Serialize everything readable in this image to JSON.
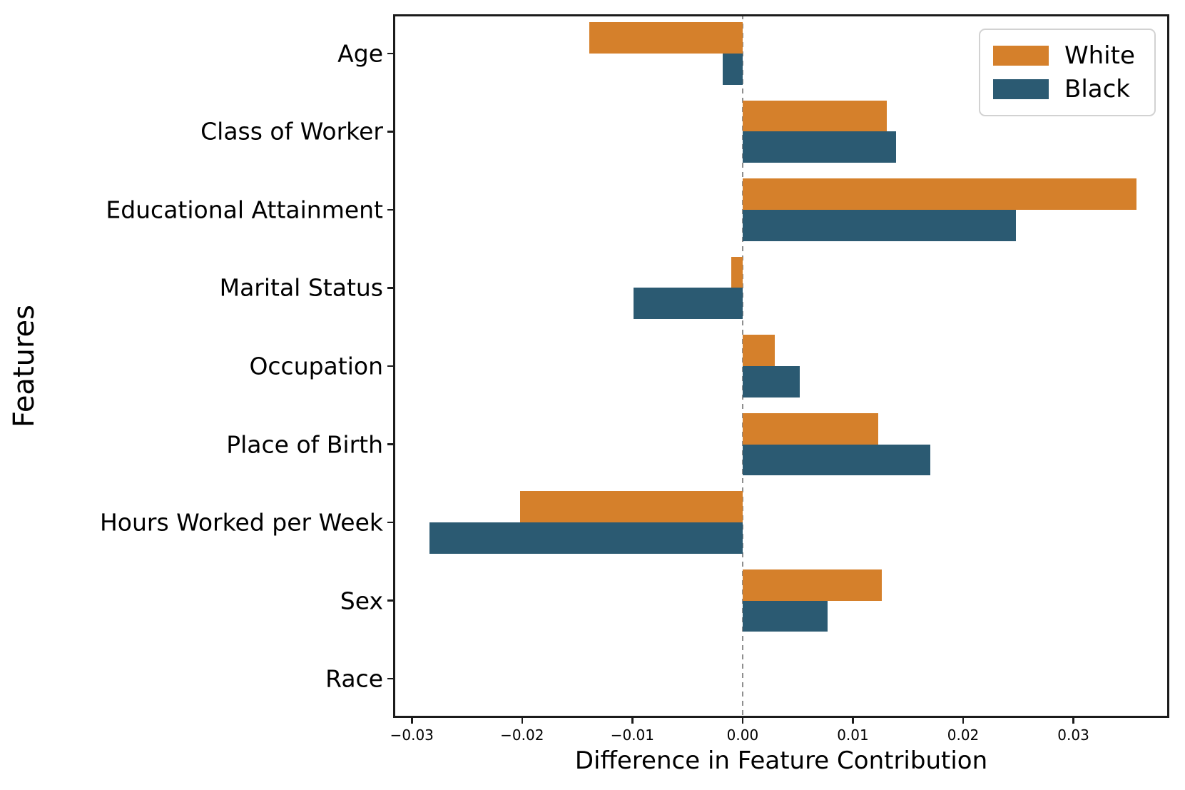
{
  "chart_data": {
    "type": "bar",
    "orientation": "horizontal",
    "title": "",
    "xlabel": "Difference in Feature Contribution",
    "ylabel": "Features",
    "categories": [
      "Age",
      "Class of Worker",
      "Educational Attainment",
      "Marital Status",
      "Occupation",
      "Place of Birth",
      "Hours Worked per Week",
      "Sex",
      "Race"
    ],
    "series": [
      {
        "name": "White",
        "color": "#d5802b",
        "values": [
          -0.0139,
          0.0131,
          0.0357,
          -0.001,
          0.0029,
          0.0123,
          -0.0202,
          0.0126,
          0.0
        ]
      },
      {
        "name": "Black",
        "color": "#2b5a72",
        "values": [
          -0.0018,
          0.0139,
          0.0248,
          -0.0099,
          0.0052,
          0.017,
          -0.0284,
          0.0077,
          0.0
        ]
      }
    ],
    "xlim": [
      -0.0317,
      0.0387
    ],
    "xticks": [
      {
        "value": -0.03,
        "label": "−0.03"
      },
      {
        "value": -0.02,
        "label": "−0.02"
      },
      {
        "value": -0.01,
        "label": "−0.01"
      },
      {
        "value": 0.0,
        "label": "0.00"
      },
      {
        "value": 0.01,
        "label": "0.01"
      },
      {
        "value": 0.02,
        "label": "0.02"
      },
      {
        "value": 0.03,
        "label": "0.03"
      }
    ],
    "zero_line": {
      "value": 0,
      "style": "dashed",
      "color": "#8f8f8f"
    },
    "grid": false,
    "legend_position": "upper right",
    "background": "#ffffff",
    "axis_color": "#1b1b1b"
  }
}
